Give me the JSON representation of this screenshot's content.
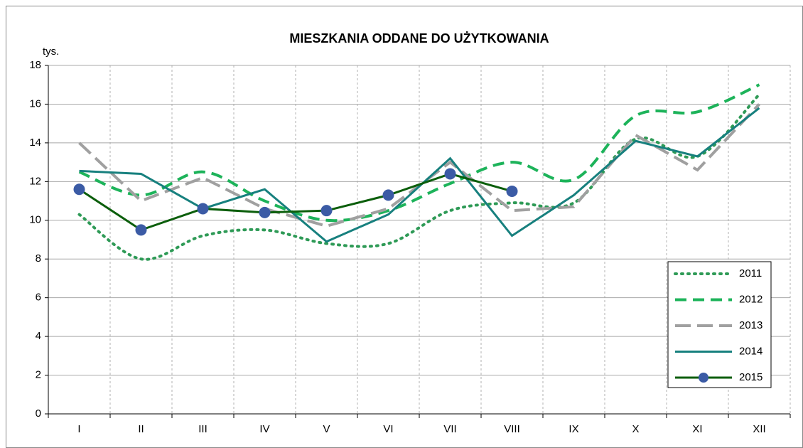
{
  "chart_data": {
    "type": "line",
    "title": "MIESZKANIA ODDANE DO UŻYTKOWANIA",
    "y_label": "tys.",
    "categories": [
      "I",
      "II",
      "III",
      "IV",
      "V",
      "VI",
      "VII",
      "VIII",
      "IX",
      "X",
      "XI",
      "XII"
    ],
    "ylim": [
      0,
      18
    ],
    "yticks": [
      0,
      2,
      4,
      6,
      8,
      10,
      12,
      14,
      16,
      18
    ],
    "grid": true,
    "legend": "lower right",
    "series": [
      {
        "name": "2011",
        "color": "#2e9a56",
        "dash": "dotted",
        "smooth": true,
        "values": [
          10.3,
          8.0,
          9.2,
          9.5,
          8.8,
          8.8,
          10.5,
          10.9,
          10.9,
          14.2,
          13.3,
          16.5
        ]
      },
      {
        "name": "2012",
        "color": "#1db35a",
        "dash": "dashed",
        "smooth": true,
        "values": [
          12.5,
          11.3,
          12.5,
          11.0,
          10.0,
          10.5,
          11.9,
          13.0,
          12.1,
          15.4,
          15.6,
          17.0
        ]
      },
      {
        "name": "2013",
        "color": "#a0a0a0",
        "dash": "longdash",
        "smooth": false,
        "values": [
          14.0,
          11.0,
          12.2,
          10.6,
          9.7,
          10.6,
          13.0,
          10.5,
          10.7,
          14.4,
          12.6,
          16.0
        ]
      },
      {
        "name": "2014",
        "color": "#17807e",
        "dash": "solid",
        "smooth": false,
        "values": [
          12.55,
          12.4,
          10.6,
          11.6,
          8.9,
          10.3,
          13.2,
          9.2,
          11.3,
          14.1,
          13.3,
          15.8
        ]
      },
      {
        "name": "2015",
        "color": "#0b5e0b",
        "dash": "solid",
        "smooth": false,
        "marker_color": "#3b5ba5",
        "values": [
          11.6,
          9.5,
          10.6,
          10.4,
          10.5,
          11.3,
          12.4,
          11.5,
          null,
          null,
          null,
          null
        ]
      }
    ]
  }
}
